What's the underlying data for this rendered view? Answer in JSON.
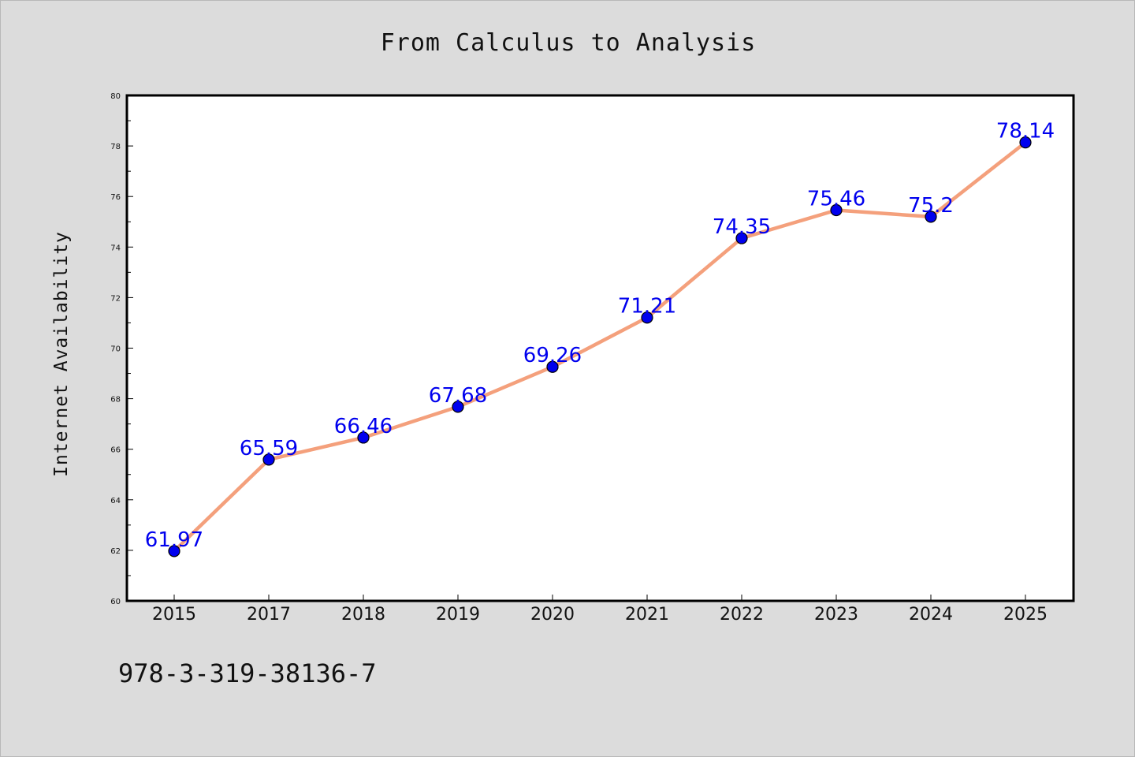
{
  "chart_data": {
    "type": "line",
    "title": "From Calculus to Analysis",
    "xlabel": "",
    "ylabel": "Internet Availability",
    "categories": [
      "2015",
      "2017",
      "2018",
      "2019",
      "2020",
      "2021",
      "2022",
      "2023",
      "2024",
      "2025"
    ],
    "series": [
      {
        "values": [
          61.97,
          65.59,
          66.46,
          67.68,
          69.26,
          71.21,
          74.35,
          75.46,
          75.2,
          78.14
        ],
        "labels": [
          "61.97",
          "65.59",
          "66.46",
          "67.68",
          "69.26",
          "71.21",
          "74.35",
          "75.46",
          "75.2",
          "78.14"
        ],
        "color": "#f4a07c",
        "marker_color": "#0000ee",
        "label_color": "#0000ee"
      }
    ],
    "ylim": [
      60,
      80
    ],
    "yticks": [
      "60",
      "62",
      "64",
      "66",
      "68",
      "70",
      "72",
      "74",
      "76",
      "78",
      "80"
    ],
    "grid": false,
    "legend": "none"
  },
  "footnote": "978-3-319-38136-7",
  "colors": {
    "background": "#dcdcdc",
    "plot_background": "#ffffff",
    "axis": "#000000"
  }
}
